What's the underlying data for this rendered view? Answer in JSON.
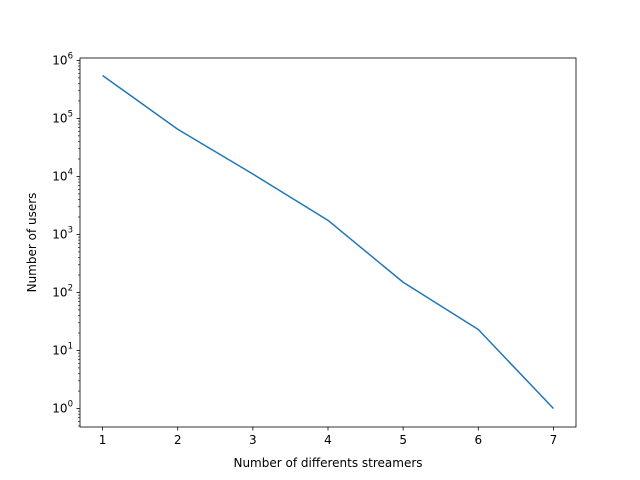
{
  "chart_data": {
    "type": "line",
    "title": "",
    "xlabel": "Number of differents streamers",
    "ylabel": "Number of users",
    "x": [
      1,
      2,
      3,
      4,
      5,
      6,
      7
    ],
    "series": [
      {
        "values": [
          550000,
          65000,
          11000,
          1750,
          150,
          23,
          1
        ],
        "color": "#1f77b4"
      }
    ],
    "xlim": [
      0.7,
      7.3
    ],
    "ylim": [
      0.48,
      1100000
    ],
    "yscale": "log",
    "xticks": [
      "1",
      "2",
      "3",
      "4",
      "5",
      "6",
      "7"
    ],
    "yticks": [
      {
        "base": "10",
        "exp": "0"
      },
      {
        "base": "10",
        "exp": "1"
      },
      {
        "base": "10",
        "exp": "2"
      },
      {
        "base": "10",
        "exp": "3"
      },
      {
        "base": "10",
        "exp": "4"
      },
      {
        "base": "10",
        "exp": "5"
      },
      {
        "base": "10",
        "exp": "6"
      }
    ],
    "grid": false,
    "legend": "none"
  }
}
